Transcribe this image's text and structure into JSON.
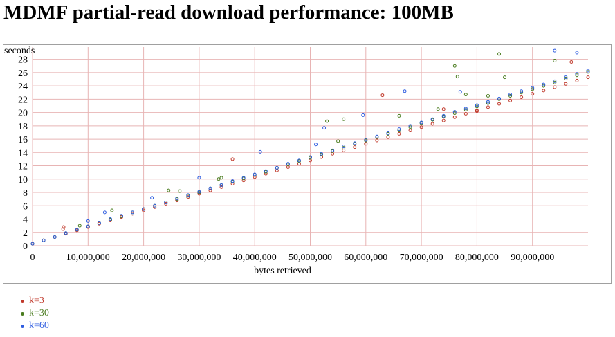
{
  "page": {
    "title": "MDMF partial-read download performance: 100MB"
  },
  "chart_data": {
    "type": "scatter",
    "title": "",
    "xlabel": "bytes retrieved",
    "ylabel": "seconds",
    "xlim": [
      0,
      100000000
    ],
    "ylim": [
      0,
      29
    ],
    "x_ticks": [
      0,
      10000000,
      20000000,
      30000000,
      40000000,
      50000000,
      60000000,
      70000000,
      80000000,
      90000000
    ],
    "x_tick_labels": [
      "0",
      "10,000,000",
      "20,000,000",
      "30,000,000",
      "40,000,000",
      "50,000,000",
      "60,000,000",
      "70,000,000",
      "80,000,000",
      "90,000,000"
    ],
    "y_ticks": [
      0,
      2,
      4,
      6,
      8,
      10,
      12,
      14,
      16,
      18,
      20,
      22,
      24,
      26,
      28
    ],
    "y_tick_labels": [
      "0",
      "2",
      "4",
      "6",
      "8",
      "10",
      "12",
      "14",
      "16",
      "18",
      "20",
      "22",
      "24",
      "26",
      "28"
    ],
    "grid": true,
    "gridline_color": "#e8b4b4",
    "legend_position": "bottom-left",
    "series": [
      {
        "name": "k=3",
        "color": "#c0392b",
        "trend": {
          "intercept": 0.3,
          "slope_per_byte": 2.5e-07
        },
        "x": [
          0,
          2000000,
          4000000,
          6000000,
          8000000,
          10000000,
          12000000,
          14000000,
          16000000,
          18000000,
          20000000,
          22000000,
          24000000,
          26000000,
          28000000,
          30000000,
          32000000,
          34000000,
          36000000,
          38000000,
          40000000,
          42000000,
          44000000,
          46000000,
          48000000,
          50000000,
          52000000,
          54000000,
          56000000,
          58000000,
          60000000,
          62000000,
          64000000,
          66000000,
          68000000,
          70000000,
          72000000,
          74000000,
          76000000,
          78000000,
          80000000,
          82000000,
          84000000,
          86000000,
          88000000,
          90000000,
          92000000,
          94000000,
          96000000,
          98000000,
          100000000,
          5500000,
          5600000,
          36000000,
          63000000,
          74000000,
          80000000,
          97000000
        ],
        "y": [
          0.3,
          0.8,
          1.3,
          1.8,
          2.3,
          2.8,
          3.3,
          3.8,
          4.3,
          4.8,
          5.3,
          5.8,
          6.3,
          6.8,
          7.3,
          7.8,
          8.3,
          8.8,
          9.3,
          9.8,
          10.3,
          10.8,
          11.3,
          11.8,
          12.3,
          12.8,
          13.3,
          13.8,
          14.3,
          14.8,
          15.3,
          15.8,
          16.3,
          16.8,
          17.3,
          17.8,
          18.3,
          18.8,
          19.3,
          19.8,
          20.3,
          20.8,
          21.3,
          21.8,
          22.3,
          22.8,
          23.3,
          23.8,
          24.3,
          24.8,
          25.3,
          2.5,
          2.8,
          13.0,
          22.6,
          20.5,
          20.2,
          27.6
        ]
      },
      {
        "name": "k=30",
        "color": "#4a7c1f",
        "trend": {
          "intercept": 0.3,
          "slope_per_byte": 2.58e-07
        },
        "x": [
          0,
          2000000,
          4000000,
          6000000,
          8000000,
          10000000,
          12000000,
          14000000,
          16000000,
          18000000,
          20000000,
          22000000,
          24000000,
          26000000,
          28000000,
          30000000,
          32000000,
          34000000,
          36000000,
          38000000,
          40000000,
          42000000,
          44000000,
          46000000,
          48000000,
          50000000,
          52000000,
          54000000,
          56000000,
          58000000,
          60000000,
          62000000,
          64000000,
          66000000,
          68000000,
          70000000,
          72000000,
          74000000,
          76000000,
          78000000,
          80000000,
          82000000,
          84000000,
          86000000,
          88000000,
          90000000,
          92000000,
          94000000,
          96000000,
          98000000,
          100000000,
          8500000,
          14300000,
          24500000,
          26500000,
          33500000,
          34000000,
          53000000,
          55000000,
          56000000,
          66000000,
          73000000,
          76000000,
          76500000,
          78000000,
          82000000,
          84000000,
          85000000,
          94000000
        ],
        "y": [
          0.3,
          0.8,
          1.3,
          1.9,
          2.4,
          2.9,
          3.4,
          3.9,
          4.4,
          5.0,
          5.5,
          6.0,
          6.5,
          7.0,
          7.5,
          8.0,
          8.6,
          9.1,
          9.6,
          10.1,
          10.6,
          11.1,
          11.7,
          12.2,
          12.7,
          13.2,
          13.7,
          14.2,
          14.7,
          15.3,
          15.8,
          16.3,
          16.8,
          17.3,
          17.8,
          18.4,
          18.9,
          19.4,
          19.9,
          20.4,
          20.9,
          21.4,
          22.0,
          22.5,
          23.0,
          23.5,
          24.0,
          24.5,
          25.1,
          25.6,
          26.1,
          3.0,
          5.3,
          8.3,
          8.2,
          10.0,
          10.2,
          18.7,
          15.7,
          19.0,
          19.5,
          20.5,
          27.0,
          25.4,
          22.7,
          22.5,
          28.8,
          25.3,
          27.8
        ]
      },
      {
        "name": "k=60",
        "color": "#2f5de0",
        "trend": {
          "intercept": 0.3,
          "slope_per_byte": 2.6e-07
        },
        "x": [
          0,
          2000000,
          4000000,
          6000000,
          8000000,
          10000000,
          12000000,
          14000000,
          16000000,
          18000000,
          20000000,
          22000000,
          24000000,
          26000000,
          28000000,
          30000000,
          32000000,
          34000000,
          36000000,
          38000000,
          40000000,
          42000000,
          44000000,
          46000000,
          48000000,
          50000000,
          52000000,
          54000000,
          56000000,
          58000000,
          60000000,
          62000000,
          64000000,
          66000000,
          68000000,
          70000000,
          72000000,
          74000000,
          76000000,
          78000000,
          80000000,
          82000000,
          84000000,
          86000000,
          88000000,
          90000000,
          92000000,
          94000000,
          96000000,
          98000000,
          100000000,
          10000000,
          13000000,
          21500000,
          30000000,
          41000000,
          51000000,
          52500000,
          59500000,
          67000000,
          77000000,
          94000000,
          98000000
        ],
        "y": [
          0.3,
          0.8,
          1.3,
          1.9,
          2.4,
          2.9,
          3.4,
          4.0,
          4.5,
          5.0,
          5.5,
          6.0,
          6.5,
          7.1,
          7.6,
          8.1,
          8.6,
          9.1,
          9.7,
          10.2,
          10.7,
          11.2,
          11.7,
          12.3,
          12.8,
          13.3,
          13.8,
          14.3,
          14.9,
          15.4,
          15.9,
          16.4,
          16.9,
          17.5,
          18.0,
          18.5,
          19.0,
          19.5,
          20.1,
          20.6,
          21.1,
          21.6,
          22.1,
          22.7,
          23.2,
          23.7,
          24.2,
          24.7,
          25.3,
          25.8,
          26.3,
          3.7,
          5.0,
          7.2,
          10.2,
          14.1,
          15.2,
          17.7,
          19.6,
          23.2,
          23.1,
          29.3,
          29.0
        ]
      }
    ]
  }
}
